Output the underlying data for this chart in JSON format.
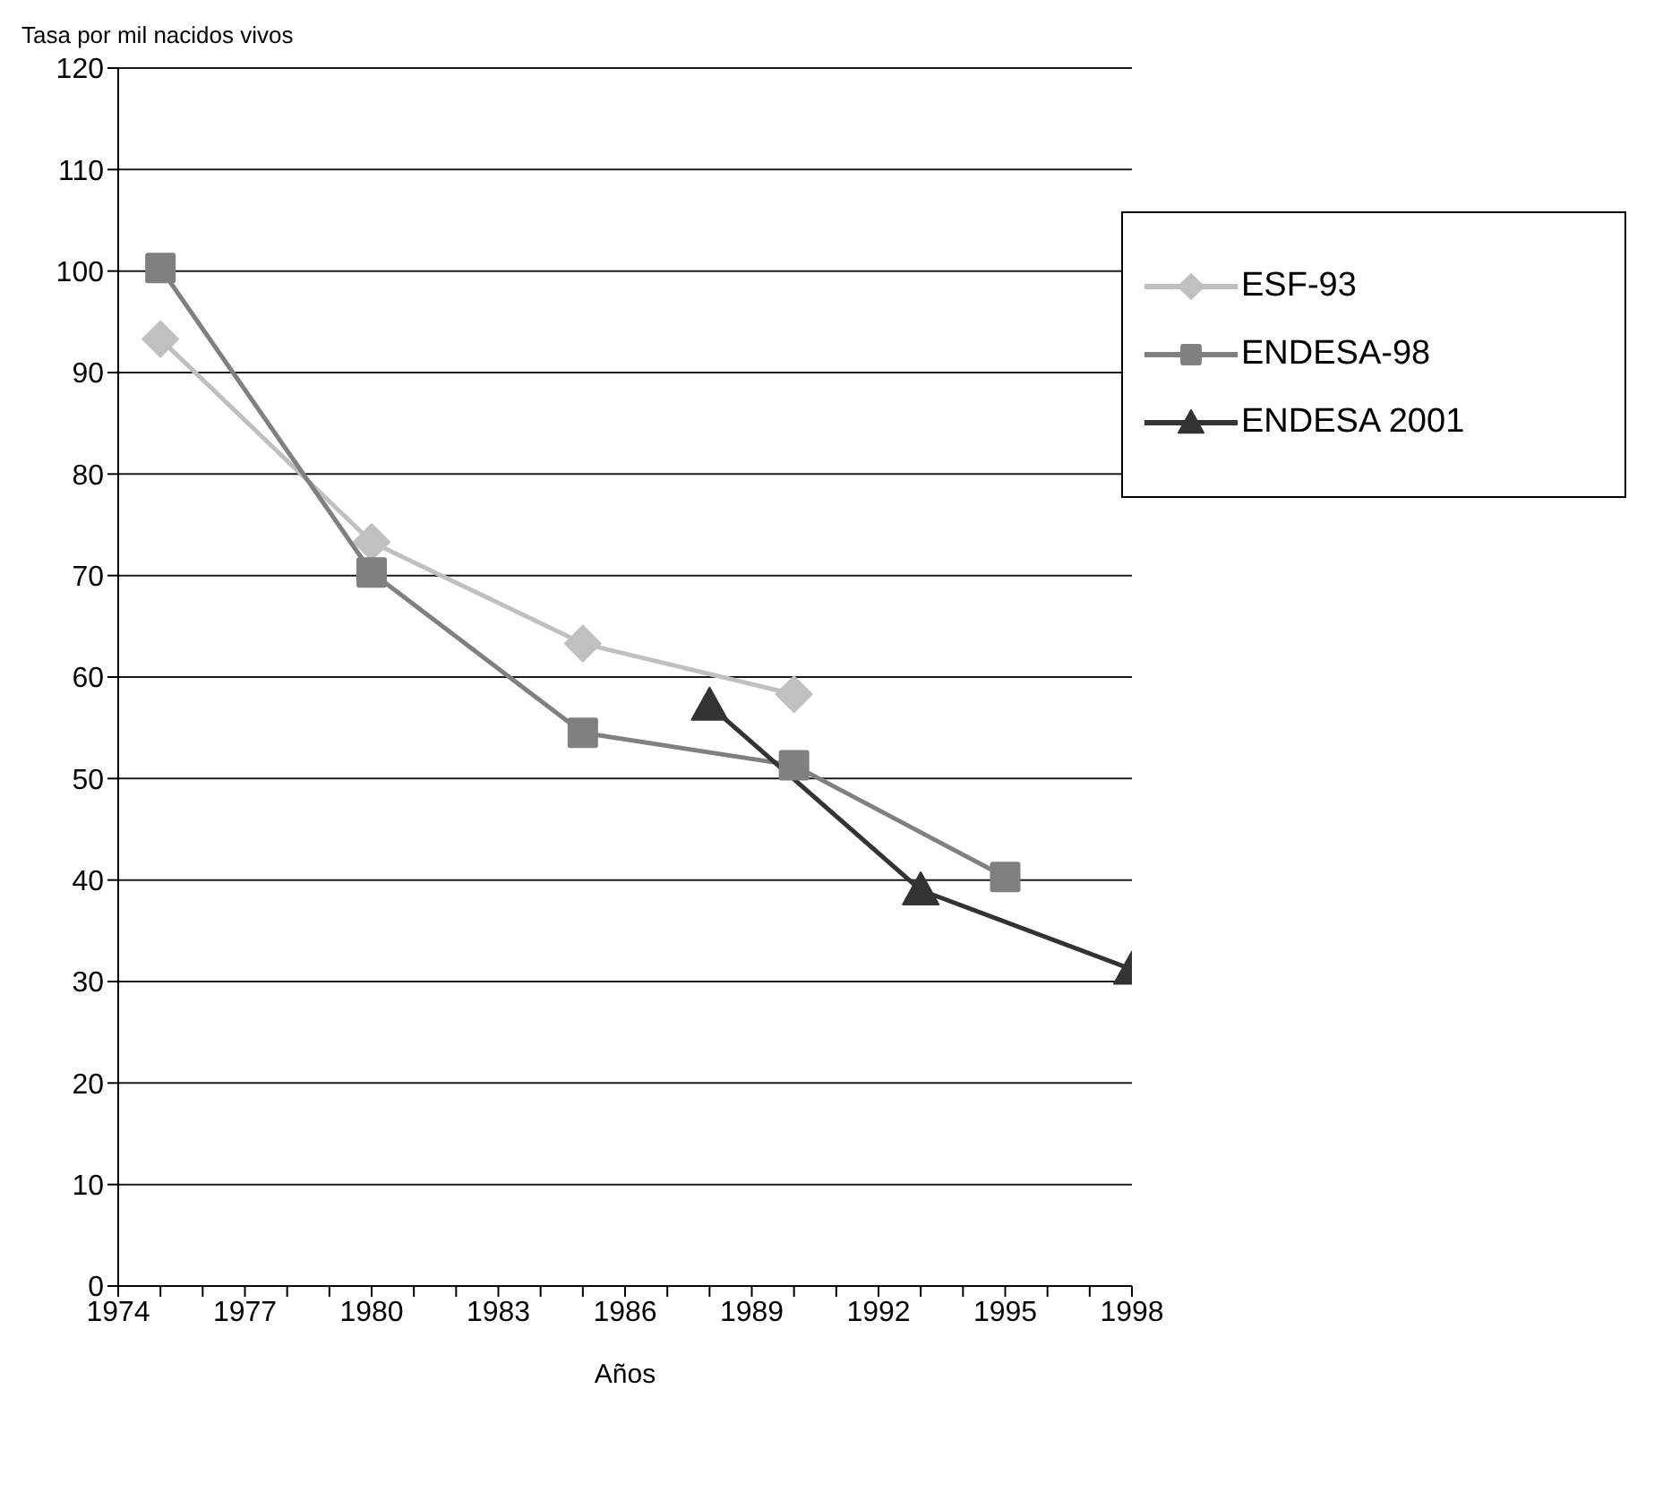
{
  "chart_data": {
    "type": "line",
    "ylabel": "Tasa por mil nacidos vivos",
    "xlabel": "Años",
    "xlim": [
      1974,
      1998
    ],
    "xticks": [
      1974,
      {
        "value": 1975,
        "label": null
      },
      {
        "value": 1976,
        "label": null
      },
      1977,
      {
        "value": 1978,
        "label": null
      },
      {
        "value": 1979,
        "label": null
      },
      1980,
      {
        "value": 1981,
        "label": null
      },
      {
        "value": 1982,
        "label": null
      },
      1983,
      {
        "value": 1984,
        "label": null
      },
      {
        "value": 1985,
        "label": null
      },
      1986,
      {
        "value": 1987,
        "label": null
      },
      {
        "value": 1988,
        "label": null
      },
      1989,
      {
        "value": 1990,
        "label": null
      },
      {
        "value": 1991,
        "label": null
      },
      1992,
      {
        "value": 1993,
        "label": null
      },
      {
        "value": 1994,
        "label": null
      },
      1995,
      {
        "value": 1996,
        "label": null
      },
      {
        "value": 1997,
        "label": null
      },
      1998
    ],
    "ylim": [
      0,
      120
    ],
    "yticks": [
      0,
      10,
      20,
      30,
      40,
      50,
      60,
      70,
      80,
      90,
      100,
      110,
      120
    ],
    "grid": "y",
    "legend": "top right",
    "series": [
      {
        "name": "ESF-93",
        "color": "#c0c0c0",
        "marker": "diamond",
        "x": [
          1975,
          1980,
          1985,
          1990
        ],
        "values": [
          93.3,
          73.3,
          63.3,
          58.3
        ]
      },
      {
        "name": "ENDESA-98",
        "color": "#808080",
        "marker": "square",
        "x": [
          1975,
          1980,
          1985,
          1990,
          1995
        ],
        "values": [
          100.3,
          70.3,
          54.5,
          51.3,
          40.3
        ]
      },
      {
        "name": "ENDESA 2001",
        "color": "#333333",
        "marker": "triangle",
        "x": [
          1988,
          1993,
          1998
        ],
        "values": [
          57.2,
          39.0,
          31.2
        ]
      }
    ]
  }
}
